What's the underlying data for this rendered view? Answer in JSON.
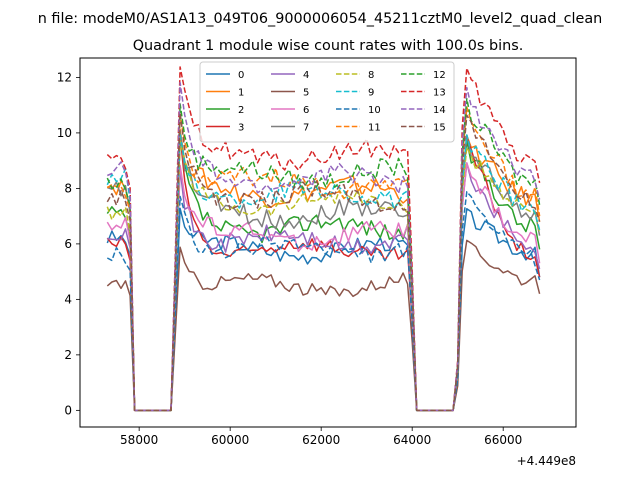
{
  "figure": {
    "suptitle": "n file: modeM0/AS1A13_049T06_9000006054_45211cztM0_level2_quad_clean",
    "axis_offset": "+4.449e8"
  },
  "chart_data": {
    "type": "line",
    "title": "Quadrant 1 module wise count rates with 100.0s bins.",
    "xlabel": "",
    "ylabel": "",
    "xlim": [
      56700,
      67600
    ],
    "ylim": [
      -0.6,
      12.7
    ],
    "x_ticks": [
      58000,
      60000,
      62000,
      64000,
      66000
    ],
    "y_ticks": [
      0,
      2,
      4,
      6,
      8,
      10,
      12
    ],
    "grid": false,
    "legend_placement": "upper center",
    "segments": [
      {
        "x_start": 57300,
        "x_end": 57700,
        "step": 100
      },
      {
        "x_start": 58900,
        "x_end": 63900,
        "step": 100
      },
      {
        "x_start": 65200,
        "x_end": 66700,
        "step": 100
      }
    ],
    "gap_shape": {
      "drop_x": [
        57800,
        57900,
        58700,
        58800
      ],
      "drop_y_fraction": [
        0.9,
        0.0,
        0.0,
        0.5
      ],
      "rise_x": [
        63900,
        64000,
        64100,
        64900,
        65000,
        65100
      ],
      "rise_y_fraction": [
        1.0,
        0.55,
        0.0,
        0.0,
        0.15,
        0.85
      ]
    },
    "series": [
      {
        "name": "0",
        "color": "#1f77b4",
        "dash": false,
        "level_left": 6.2,
        "level_mid": 5.8,
        "level_right": 6.4,
        "peak": 7.0,
        "noise": 0.3
      },
      {
        "name": "1",
        "color": "#ff7f0e",
        "dash": false,
        "level_left": 8.1,
        "level_mid": 7.9,
        "level_right": 8.4,
        "peak": 9.6,
        "noise": 0.35
      },
      {
        "name": "2",
        "color": "#2ca02c",
        "dash": false,
        "level_left": 7.0,
        "level_mid": 6.6,
        "level_right": 7.4,
        "peak": 9.4,
        "noise": 0.35
      },
      {
        "name": "3",
        "color": "#d62728",
        "dash": false,
        "level_left": 6.0,
        "level_mid": 5.8,
        "level_right": 6.4,
        "peak": 9.6,
        "noise": 0.3
      },
      {
        "name": "4",
        "color": "#9467bd",
        "dash": false,
        "level_left": 6.5,
        "level_mid": 6.1,
        "level_right": 6.7,
        "peak": 8.6,
        "noise": 0.35
      },
      {
        "name": "5",
        "color": "#8c564b",
        "dash": false,
        "level_left": 4.6,
        "level_mid": 4.5,
        "level_right": 5.4,
        "peak": 5.9,
        "noise": 0.25
      },
      {
        "name": "6",
        "color": "#e377c2",
        "dash": false,
        "level_left": 6.8,
        "level_mid": 6.3,
        "level_right": 6.9,
        "peak": 8.6,
        "noise": 0.35
      },
      {
        "name": "7",
        "color": "#7f7f7f",
        "dash": false,
        "level_left": 7.9,
        "level_mid": 7.1,
        "level_right": 7.9,
        "peak": 9.6,
        "noise": 0.35
      },
      {
        "name": "8",
        "color": "#bcbd22",
        "dash": true,
        "level_left": 7.1,
        "level_mid": 7.5,
        "level_right": 8.0,
        "peak": 9.2,
        "noise": 0.3
      },
      {
        "name": "9",
        "color": "#17becf",
        "dash": true,
        "level_left": 8.4,
        "level_mid": 7.8,
        "level_right": 8.1,
        "peak": 9.6,
        "noise": 0.35
      },
      {
        "name": "10",
        "color": "#1f77b4",
        "dash": true,
        "level_left": 5.6,
        "level_mid": 5.8,
        "level_right": 6.3,
        "peak": 7.6,
        "noise": 0.3
      },
      {
        "name": "11",
        "color": "#ff7f0e",
        "dash": true,
        "level_left": 8.0,
        "level_mid": 8.2,
        "level_right": 8.6,
        "peak": 10.6,
        "noise": 0.35
      },
      {
        "name": "12",
        "color": "#2ca02c",
        "dash": true,
        "level_left": 8.2,
        "level_mid": 8.5,
        "level_right": 9.0,
        "peak": 10.9,
        "noise": 0.35
      },
      {
        "name": "13",
        "color": "#d62728",
        "dash": true,
        "level_left": 8.9,
        "level_mid": 9.2,
        "level_right": 9.8,
        "peak": 12.0,
        "noise": 0.35
      },
      {
        "name": "14",
        "color": "#9467bd",
        "dash": true,
        "level_left": 8.7,
        "level_mid": 8.3,
        "level_right": 9.2,
        "peak": 11.3,
        "noise": 0.35
      },
      {
        "name": "15",
        "color": "#8c564b",
        "dash": true,
        "level_left": 7.6,
        "level_mid": 7.7,
        "level_right": 8.4,
        "peak": 10.3,
        "noise": 0.35
      }
    ]
  }
}
